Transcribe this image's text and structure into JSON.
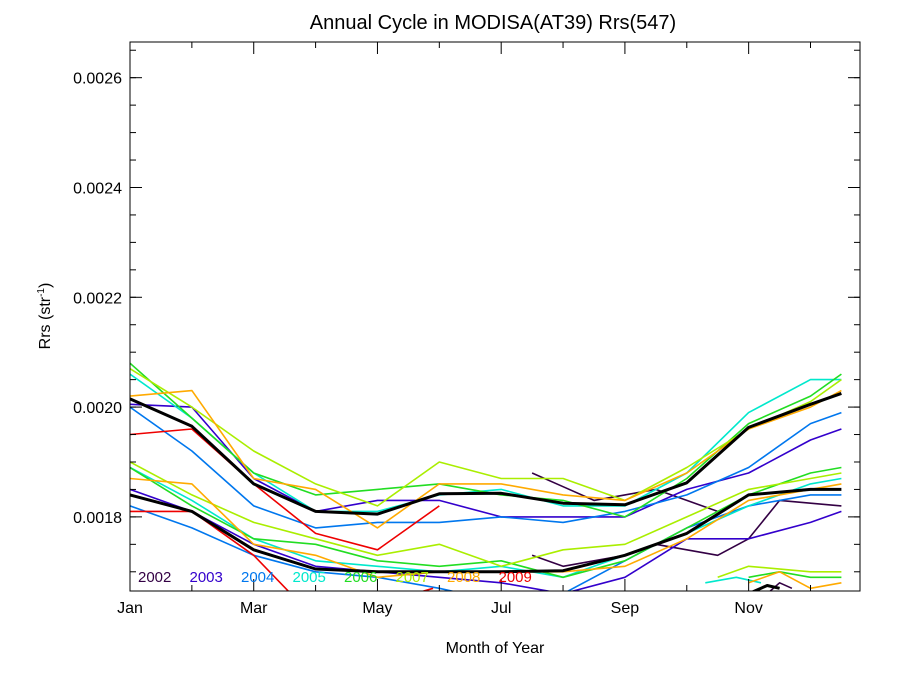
{
  "chart_data": {
    "type": "line",
    "title": "Annual Cycle in MODISA(AT39) Rrs(547)",
    "xlabel": "Month of Year",
    "ylabel_main": "Rrs (str",
    "ylabel_sup": "-1",
    "ylabel_close": ")",
    "xlim": [
      1,
      12.8
    ],
    "ylim": [
      0.001665,
      0.002665
    ],
    "x_ticks": [
      {
        "value": 1,
        "label": "Jan"
      },
      {
        "value": 3,
        "label": "Mar"
      },
      {
        "value": 5,
        "label": "May"
      },
      {
        "value": 7,
        "label": "Jul"
      },
      {
        "value": 9,
        "label": "Sep"
      },
      {
        "value": 11,
        "label": "Nov"
      }
    ],
    "y_ticks": [
      {
        "value": 0.0018,
        "label": "0.0018"
      },
      {
        "value": 0.002,
        "label": "0.0020"
      },
      {
        "value": 0.0022,
        "label": "0.0022"
      },
      {
        "value": 0.0024,
        "label": "0.0024"
      },
      {
        "value": 0.0026,
        "label": "0.0026"
      }
    ],
    "legend": [
      {
        "label": "2002",
        "color": "#330044"
      },
      {
        "label": "2003",
        "color": "#3300cc"
      },
      {
        "label": "2004",
        "color": "#0077ee"
      },
      {
        "label": "2005",
        "color": "#00e8cc"
      },
      {
        "label": "2006",
        "color": "#22dd22"
      },
      {
        "label": "2007",
        "color": "#aaee00"
      },
      {
        "label": "2008",
        "color": "#ffaa00"
      },
      {
        "label": "2009",
        "color": "#ee0000"
      }
    ],
    "series": [
      {
        "color": "#330044",
        "x": [
          7.5,
          8,
          8.5,
          9,
          9.5,
          10,
          10.5
        ],
        "y": [
          0.00188,
          0.001855,
          0.00183,
          0.00184,
          0.00185,
          0.00183,
          0.00181
        ]
      },
      {
        "color": "#330044",
        "x": [
          7.5,
          8,
          8.5,
          9,
          9.5,
          10,
          10.5,
          11,
          11.5,
          12,
          12.5
        ],
        "y": [
          0.00173,
          0.00171,
          0.00172,
          0.00173,
          0.00175,
          0.00174,
          0.00173,
          0.00176,
          0.00183,
          0.001825,
          0.00182
        ]
      },
      {
        "color": "#330044",
        "x": [
          11.3,
          11.5,
          11.7
        ],
        "y": [
          0.00166,
          0.00168,
          0.00167
        ]
      },
      {
        "color": "#3300cc",
        "x": [
          1,
          2,
          3,
          4,
          5,
          6,
          7,
          8,
          9,
          10,
          11,
          12,
          12.5
        ],
        "y": [
          0.002005,
          0.002,
          0.00187,
          0.00181,
          0.00183,
          0.00183,
          0.0018,
          0.0018,
          0.0018,
          0.00185,
          0.00188,
          0.00194,
          0.00196
        ]
      },
      {
        "color": "#3300cc",
        "x": [
          1,
          2,
          3,
          4,
          5,
          6,
          7,
          8,
          9,
          10,
          11,
          12,
          12.5
        ],
        "y": [
          0.00185,
          0.00181,
          0.00175,
          0.00171,
          0.0017,
          0.00169,
          0.00168,
          0.00166,
          0.00169,
          0.00176,
          0.00176,
          0.00179,
          0.00181
        ]
      },
      {
        "color": "#0077ee",
        "x": [
          1,
          2,
          3,
          4,
          5,
          6,
          7,
          8,
          9,
          10,
          11,
          12,
          12.5
        ],
        "y": [
          0.002,
          0.00192,
          0.00182,
          0.00178,
          0.00179,
          0.00179,
          0.0018,
          0.00179,
          0.00181,
          0.00184,
          0.00189,
          0.00197,
          0.00199
        ]
      },
      {
        "color": "#0077ee",
        "x": [
          1,
          2,
          3,
          4,
          5,
          6,
          6.8
        ],
        "y": [
          0.00182,
          0.00178,
          0.00173,
          0.0017,
          0.00169,
          0.00167,
          0.00165
        ]
      },
      {
        "color": "#0077ee",
        "x": [
          8,
          9,
          10,
          11,
          12,
          12.5
        ],
        "y": [
          0.00166,
          0.00172,
          0.00178,
          0.00182,
          0.00184,
          0.00184
        ]
      },
      {
        "color": "#00e8cc",
        "x": [
          1,
          2,
          3,
          4,
          5,
          6,
          7,
          8,
          9,
          10,
          11,
          12,
          12.5
        ],
        "y": [
          0.00206,
          0.00198,
          0.00188,
          0.00181,
          0.00181,
          0.00184,
          0.00185,
          0.00182,
          0.00182,
          0.00188,
          0.00199,
          0.00205,
          0.00205
        ]
      },
      {
        "color": "#00e8cc",
        "x": [
          1,
          2,
          3,
          4,
          5,
          6,
          7,
          8,
          9,
          10,
          11,
          12,
          12.5
        ],
        "y": [
          0.00189,
          0.00183,
          0.00176,
          0.00172,
          0.00171,
          0.0017,
          0.00171,
          0.00169,
          0.00173,
          0.00177,
          0.00182,
          0.00186,
          0.00187
        ]
      },
      {
        "color": "#00e8cc",
        "x": [
          10.3,
          10.8,
          11.2
        ],
        "y": [
          0.00168,
          0.00169,
          0.00168
        ]
      },
      {
        "color": "#22dd22",
        "x": [
          1,
          2,
          3,
          4,
          5,
          6,
          7,
          8,
          9,
          10,
          11,
          12,
          12.5
        ],
        "y": [
          0.00208,
          0.00198,
          0.00188,
          0.00184,
          0.00185,
          0.00186,
          0.00184,
          0.00183,
          0.0018,
          0.00187,
          0.00197,
          0.00202,
          0.00206
        ]
      },
      {
        "color": "#22dd22",
        "x": [
          1,
          2,
          3,
          4,
          5,
          6,
          7,
          8,
          9,
          10,
          11,
          12,
          12.5
        ],
        "y": [
          0.00189,
          0.00182,
          0.00176,
          0.00175,
          0.00172,
          0.00171,
          0.00172,
          0.00169,
          0.00172,
          0.00178,
          0.00184,
          0.00188,
          0.00189
        ]
      },
      {
        "color": "#22dd22",
        "x": [
          11,
          11.5,
          12,
          12.5
        ],
        "y": [
          0.00169,
          0.0017,
          0.00169,
          0.00169
        ]
      },
      {
        "color": "#aaee00",
        "x": [
          1,
          2,
          3,
          4,
          5,
          6,
          7,
          8,
          9,
          10,
          11,
          12,
          12.5
        ],
        "y": [
          0.00207,
          0.002,
          0.00192,
          0.00186,
          0.00182,
          0.0019,
          0.00187,
          0.00187,
          0.00183,
          0.00189,
          0.00196,
          0.00201,
          0.00205
        ]
      },
      {
        "color": "#aaee00",
        "x": [
          1,
          2,
          3,
          4,
          5,
          6,
          7,
          8,
          9,
          10,
          11,
          12,
          12.5
        ],
        "y": [
          0.0019,
          0.00184,
          0.00179,
          0.00176,
          0.00173,
          0.00175,
          0.00171,
          0.00174,
          0.00175,
          0.0018,
          0.00185,
          0.00187,
          0.00188
        ]
      },
      {
        "color": "#aaee00",
        "x": [
          10.5,
          11,
          12,
          12.5
        ],
        "y": [
          0.00169,
          0.00171,
          0.0017,
          0.0017
        ]
      },
      {
        "color": "#ffaa00",
        "x": [
          1,
          2,
          3,
          4,
          5,
          6,
          7,
          8,
          9,
          10,
          11,
          12,
          12.5
        ],
        "y": [
          0.00202,
          0.00203,
          0.00187,
          0.00185,
          0.00178,
          0.00186,
          0.00186,
          0.00184,
          0.00183,
          0.00188,
          0.00196,
          0.002,
          0.00203
        ]
      },
      {
        "color": "#ffaa00",
        "x": [
          1,
          2,
          3,
          4,
          5,
          6,
          7,
          8,
          9,
          10,
          11,
          12,
          12.5
        ],
        "y": [
          0.00187,
          0.00186,
          0.00175,
          0.00173,
          0.00169,
          0.0017,
          0.0017,
          0.0017,
          0.00171,
          0.00176,
          0.00183,
          0.00185,
          0.00186
        ]
      },
      {
        "color": "#ffaa00",
        "x": [
          11,
          11.5,
          12,
          12.5
        ],
        "y": [
          0.00168,
          0.0017,
          0.00167,
          0.00168
        ]
      },
      {
        "color": "#ee0000",
        "x": [
          1,
          2,
          3,
          4,
          5,
          6
        ],
        "y": [
          0.00195,
          0.00196,
          0.00186,
          0.00177,
          0.00174,
          0.00182
        ]
      },
      {
        "color": "#ee0000",
        "x": [
          1,
          2,
          3,
          3.6
        ],
        "y": [
          0.00181,
          0.00181,
          0.00173,
          0.00166
        ]
      },
      {
        "color": "#ee0000",
        "x": [
          5.6,
          5.9
        ],
        "y": [
          0.00166,
          0.00167
        ]
      },
      {
        "color": "#000000",
        "width": 3,
        "x": [
          1,
          2,
          3,
          4,
          5,
          6,
          7,
          8,
          9,
          10,
          11,
          12,
          12.5
        ],
        "y": [
          0.002015,
          0.001965,
          0.00186,
          0.00181,
          0.001805,
          0.001842,
          0.001843,
          0.001825,
          0.001822,
          0.001862,
          0.001963,
          0.002005,
          0.002025
        ]
      },
      {
        "color": "#000000",
        "width": 3,
        "x": [
          1,
          2,
          3,
          4,
          5,
          6,
          7,
          8,
          9,
          10,
          11,
          12,
          12.5
        ],
        "y": [
          0.00184,
          0.00181,
          0.00174,
          0.001705,
          0.0017,
          0.0017,
          0.0017,
          0.001702,
          0.00173,
          0.00177,
          0.00184,
          0.00185,
          0.00185
        ]
      },
      {
        "color": "#000000",
        "width": 3,
        "x": [
          10.7,
          11,
          11.3,
          11.5
        ],
        "y": [
          0.00165,
          0.00166,
          0.001675,
          0.00167
        ]
      }
    ]
  }
}
